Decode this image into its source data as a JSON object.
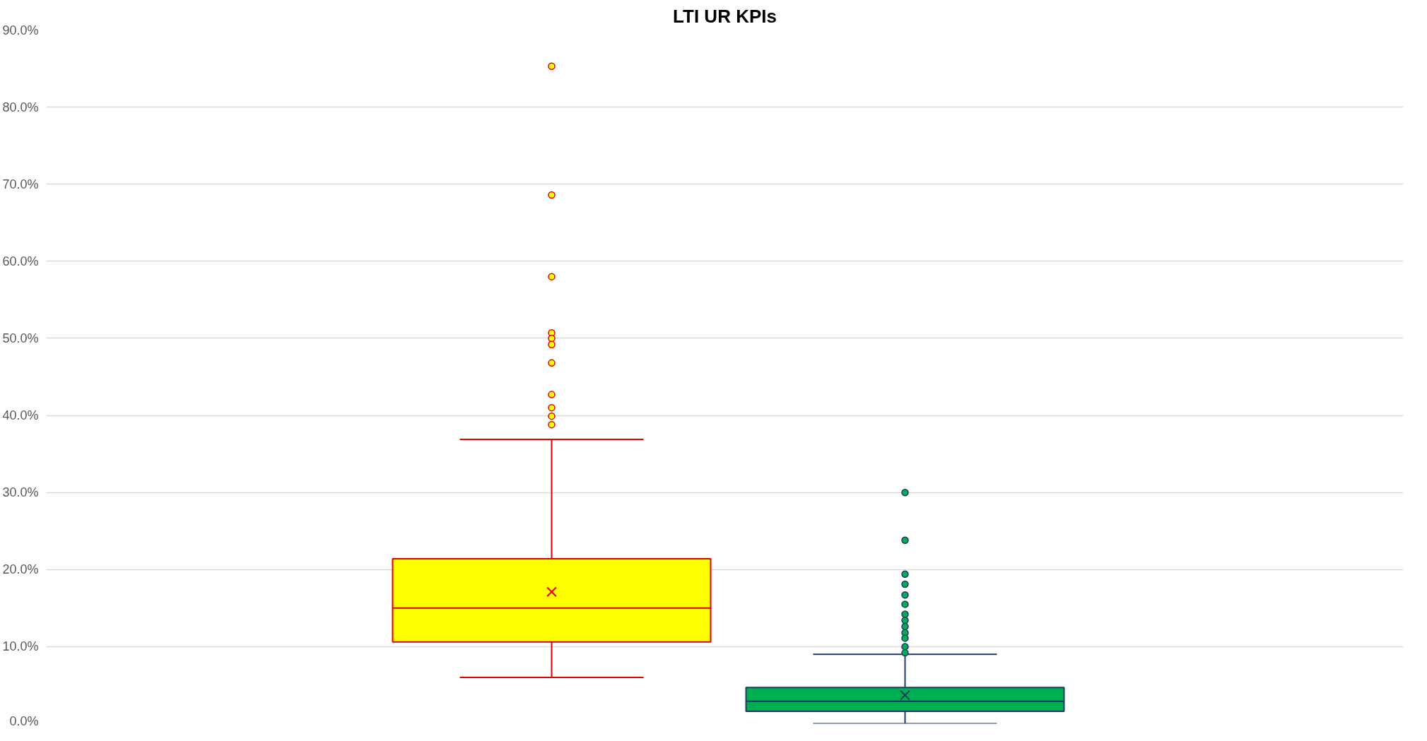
{
  "chart_data": {
    "type": "box",
    "title": "LTI UR KPIs",
    "categories": [
      null,
      null
    ],
    "colors": [
      "#ffff00",
      "#00b050"
    ],
    "boxes": [
      {
        "low": 6.0,
        "q1": 10.6,
        "median": 15.0,
        "q3": 21.4,
        "high": 36.9,
        "mean": 17.1,
        "outliers": [
          85.3,
          68.6,
          58.0,
          50.7,
          50.0,
          49.2,
          46.8,
          42.7,
          41.0,
          39.9,
          38.8
        ]
      },
      {
        "low": 0.0,
        "q1": 1.6,
        "median": 2.9,
        "q3": 4.7,
        "high": 9.0,
        "mean": 3.7,
        "outliers": [
          30.0,
          23.8,
          19.4,
          18.1,
          16.7,
          15.5,
          14.2,
          13.4,
          12.6,
          11.8,
          11.1,
          10.0,
          9.2
        ]
      }
    ],
    "ylim": [
      0,
      90
    ],
    "yticks": [
      {
        "value": 0,
        "label": "0.0%"
      },
      {
        "value": 10,
        "label": "10.0%"
      },
      {
        "value": 20,
        "label": "20.0%"
      },
      {
        "value": 30,
        "label": "30.0%"
      },
      {
        "value": 40,
        "label": "40.0%"
      },
      {
        "value": 50,
        "label": "50.0%"
      },
      {
        "value": 60,
        "label": "60.0%"
      },
      {
        "value": 70,
        "label": "70.0%"
      },
      {
        "value": 80,
        "label": "80.0%"
      },
      {
        "value": 90,
        "label": "90.0%"
      }
    ],
    "grid": "y"
  }
}
